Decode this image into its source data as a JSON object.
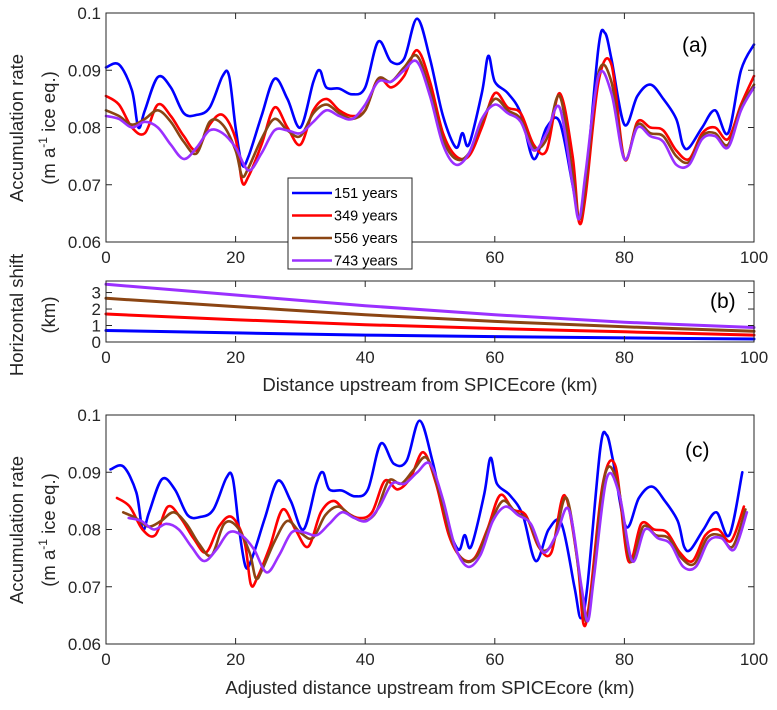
{
  "chart_data": [
    {
      "id": "a",
      "type": "line",
      "panel_label": "(a)",
      "xlabel": "",
      "ylabel_line1": "Accumulation rate",
      "ylabel_line2_prefix": "(m a",
      "ylabel_line2_sup": "-1",
      "ylabel_line2_suffix": " ice eq.)",
      "xlim": [
        0,
        100
      ],
      "ylim": [
        0.06,
        0.1
      ],
      "xticks": [
        0,
        20,
        40,
        60,
        80,
        100
      ],
      "xtick_labels": [
        "0",
        "20",
        "40",
        "60",
        "80",
        "100"
      ],
      "yticks": [
        0.06,
        0.07,
        0.08,
        0.09,
        0.1
      ],
      "ytick_labels": [
        "0.06",
        "0.07",
        "0.08",
        "0.09",
        "0.1"
      ],
      "legend": {
        "placement": "bottom-center",
        "entries": [
          "151 years",
          "349 years",
          "556 years",
          "743 years"
        ]
      },
      "series": [
        {
          "name": "151 years",
          "color": "#0000ff",
          "x": [
            0,
            2,
            4,
            5,
            6,
            8,
            10,
            12,
            14,
            16,
            18,
            19,
            20,
            21,
            22,
            24,
            26,
            28,
            30,
            32,
            33,
            34,
            36,
            38,
            40,
            42,
            44,
            46,
            48,
            50,
            52,
            54,
            55,
            56,
            58,
            59,
            60,
            62,
            64,
            66,
            68,
            70,
            72,
            73,
            74,
            76,
            77,
            78,
            80,
            82,
            84,
            86,
            88,
            89,
            90,
            92,
            94,
            96,
            98,
            100
          ],
          "y": [
            0.0905,
            0.091,
            0.0865,
            0.08,
            0.083,
            0.0888,
            0.087,
            0.0825,
            0.0822,
            0.0835,
            0.089,
            0.089,
            0.08,
            0.0735,
            0.075,
            0.082,
            0.0885,
            0.085,
            0.08,
            0.088,
            0.09,
            0.087,
            0.0868,
            0.0858,
            0.087,
            0.095,
            0.0915,
            0.092,
            0.099,
            0.092,
            0.082,
            0.0765,
            0.079,
            0.077,
            0.086,
            0.0925,
            0.088,
            0.086,
            0.0825,
            0.0745,
            0.08,
            0.081,
            0.07,
            0.0645,
            0.07,
            0.094,
            0.0965,
            0.092,
            0.0805,
            0.0855,
            0.0875,
            0.085,
            0.0815,
            0.077,
            0.0765,
            0.08,
            0.083,
            0.079,
            0.09,
            0.0945
          ]
        },
        {
          "name": "349 years",
          "color": "#ff0000",
          "x": [
            0,
            2,
            4,
            6,
            8,
            10,
            12,
            14,
            16,
            18,
            20,
            21,
            22,
            24,
            26,
            28,
            30,
            32,
            34,
            36,
            38,
            40,
            42,
            44,
            46,
            48,
            50,
            52,
            54,
            56,
            58,
            60,
            62,
            64,
            66,
            68,
            70,
            72,
            73,
            74,
            76,
            78,
            80,
            82,
            84,
            86,
            88,
            90,
            92,
            94,
            96,
            98,
            100
          ],
          "y": [
            0.0855,
            0.084,
            0.08,
            0.079,
            0.084,
            0.082,
            0.0785,
            0.076,
            0.0805,
            0.0822,
            0.078,
            0.0705,
            0.0715,
            0.077,
            0.0835,
            0.08,
            0.077,
            0.083,
            0.085,
            0.083,
            0.082,
            0.083,
            0.0885,
            0.087,
            0.089,
            0.0935,
            0.088,
            0.079,
            0.075,
            0.075,
            0.08,
            0.086,
            0.0835,
            0.0825,
            0.077,
            0.076,
            0.086,
            0.075,
            0.0635,
            0.068,
            0.088,
            0.091,
            0.0745,
            0.081,
            0.08,
            0.0795,
            0.076,
            0.0745,
            0.079,
            0.08,
            0.078,
            0.084,
            0.089
          ]
        },
        {
          "name": "556 years",
          "color": "#8b4513",
          "x": [
            0,
            2,
            4,
            6,
            8,
            10,
            12,
            14,
            16,
            18,
            20,
            21,
            22,
            24,
            26,
            28,
            30,
            32,
            34,
            36,
            38,
            40,
            42,
            44,
            46,
            48,
            50,
            52,
            54,
            56,
            58,
            60,
            62,
            64,
            66,
            68,
            70,
            72,
            73,
            74,
            76,
            78,
            80,
            82,
            84,
            86,
            88,
            90,
            92,
            94,
            96,
            98,
            100
          ],
          "y": [
            0.083,
            0.082,
            0.0805,
            0.0815,
            0.083,
            0.081,
            0.0775,
            0.0755,
            0.081,
            0.0805,
            0.076,
            0.0715,
            0.073,
            0.078,
            0.0815,
            0.0795,
            0.0785,
            0.0825,
            0.084,
            0.0825,
            0.0815,
            0.083,
            0.0885,
            0.088,
            0.0905,
            0.0925,
            0.0865,
            0.078,
            0.0745,
            0.0755,
            0.081,
            0.085,
            0.083,
            0.0815,
            0.0765,
            0.078,
            0.0855,
            0.072,
            0.064,
            0.07,
            0.0895,
            0.088,
            0.0745,
            0.0805,
            0.079,
            0.0785,
            0.075,
            0.074,
            0.0785,
            0.079,
            0.077,
            0.0835,
            0.0875
          ]
        },
        {
          "name": "743 years",
          "color": "#9b30ff",
          "x": [
            0,
            2,
            4,
            6,
            8,
            10,
            12,
            14,
            16,
            18,
            20,
            22,
            24,
            26,
            28,
            30,
            32,
            34,
            36,
            38,
            40,
            42,
            44,
            46,
            48,
            50,
            52,
            54,
            56,
            58,
            60,
            62,
            64,
            66,
            68,
            70,
            72,
            73,
            74,
            76,
            78,
            80,
            82,
            84,
            86,
            88,
            90,
            92,
            94,
            96,
            98,
            100
          ],
          "y": [
            0.082,
            0.0815,
            0.08,
            0.081,
            0.08,
            0.077,
            0.0745,
            0.0765,
            0.0795,
            0.079,
            0.0765,
            0.0725,
            0.0755,
            0.0795,
            0.0795,
            0.079,
            0.081,
            0.083,
            0.082,
            0.0815,
            0.084,
            0.088,
            0.088,
            0.09,
            0.0915,
            0.0855,
            0.077,
            0.0735,
            0.0755,
            0.0815,
            0.084,
            0.0825,
            0.081,
            0.076,
            0.079,
            0.0835,
            0.07,
            0.064,
            0.072,
            0.089,
            0.086,
            0.0745,
            0.08,
            0.0785,
            0.0775,
            0.0735,
            0.0735,
            0.078,
            0.0785,
            0.0765,
            0.083,
            0.087
          ]
        }
      ]
    },
    {
      "id": "b",
      "type": "line",
      "panel_label": "(b)",
      "xlabel": "Distance upstream from SPICEcore (km)",
      "ylabel_line1": "Horizontal shift",
      "ylabel_line2": "(km)",
      "xlim": [
        0,
        100
      ],
      "ylim": [
        0,
        3.7
      ],
      "xticks": [
        0,
        20,
        40,
        60,
        80,
        100
      ],
      "xtick_labels": [
        "0",
        "20",
        "40",
        "60",
        "80",
        "100"
      ],
      "yticks": [
        0,
        1,
        2,
        3
      ],
      "ytick_labels": [
        "0",
        "1",
        "2",
        "3"
      ],
      "series": [
        {
          "name": "151 years",
          "color": "#0000ff",
          "x": [
            0,
            20,
            40,
            60,
            80,
            100
          ],
          "y": [
            0.7,
            0.55,
            0.42,
            0.33,
            0.25,
            0.18
          ]
        },
        {
          "name": "349 years",
          "color": "#ff0000",
          "x": [
            0,
            20,
            40,
            60,
            80,
            100
          ],
          "y": [
            1.7,
            1.35,
            1.05,
            0.82,
            0.62,
            0.42
          ]
        },
        {
          "name": "556 years",
          "color": "#8b4513",
          "x": [
            0,
            20,
            40,
            60,
            80,
            100
          ],
          "y": [
            2.65,
            2.15,
            1.65,
            1.25,
            0.92,
            0.65
          ]
        },
        {
          "name": "743 years",
          "color": "#9b30ff",
          "x": [
            0,
            20,
            40,
            60,
            80,
            100
          ],
          "y": [
            3.5,
            2.85,
            2.2,
            1.65,
            1.2,
            0.88
          ]
        }
      ]
    },
    {
      "id": "c",
      "type": "line",
      "panel_label": "(c)",
      "xlabel": "Adjusted distance upstream from SPICEcore (km)",
      "ylabel_line1": "Accumulation rate",
      "ylabel_line2_prefix": "(m a",
      "ylabel_line2_sup": "-1",
      "ylabel_line2_suffix": " ice eq.)",
      "xlim": [
        0,
        100
      ],
      "ylim": [
        0.06,
        0.1
      ],
      "xticks": [
        0,
        20,
        40,
        60,
        80,
        100
      ],
      "xtick_labels": [
        "0",
        "20",
        "40",
        "60",
        "80",
        "100"
      ],
      "yticks": [
        0.06,
        0.07,
        0.08,
        0.09,
        0.1
      ],
      "ytick_labels": [
        "0.06",
        "0.07",
        "0.08",
        "0.09",
        "0.1"
      ],
      "note": "series are panel (a) series shifted by panel (b) horizontal shift",
      "series_from": "a",
      "shift_from": "b"
    }
  ]
}
